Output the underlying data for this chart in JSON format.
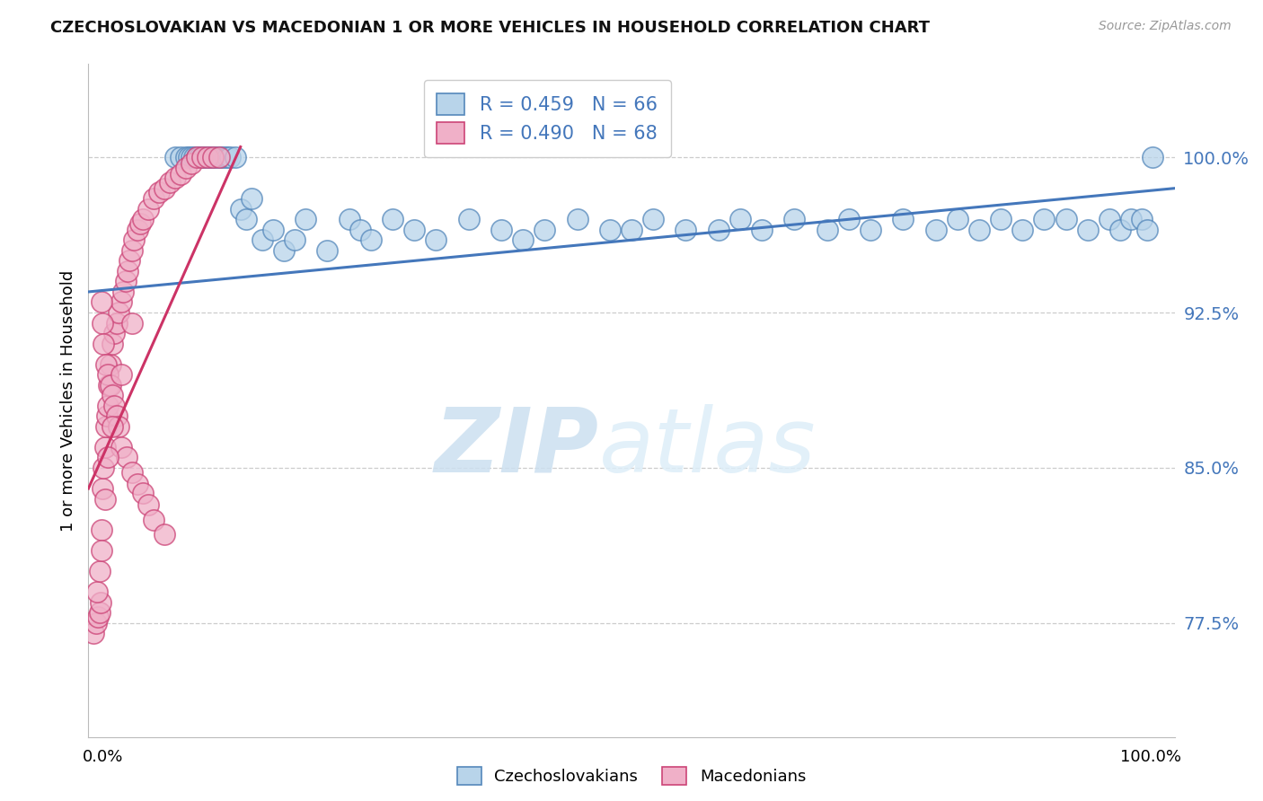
{
  "title": "CZECHOSLOVAKIAN VS MACEDONIAN 1 OR MORE VEHICLES IN HOUSEHOLD CORRELATION CHART",
  "source": "Source: ZipAtlas.com",
  "ylabel": "1 or more Vehicles in Household",
  "ytick_values": [
    0.775,
    0.85,
    0.925,
    1.0
  ],
  "ytick_labels": [
    "77.5%",
    "85.0%",
    "92.5%",
    "100.0%"
  ],
  "xmin": 0.0,
  "xmax": 1.0,
  "ymin": 0.72,
  "ymax": 1.045,
  "blue_R": 0.459,
  "blue_N": 66,
  "pink_R": 0.49,
  "pink_N": 68,
  "blue_color": "#b8d4ea",
  "blue_edge_color": "#5588bb",
  "pink_color": "#f0b0c8",
  "pink_edge_color": "#cc4477",
  "blue_line_color": "#4477bb",
  "pink_line_color": "#cc3366",
  "title_color": "#111111",
  "source_color": "#999999",
  "grid_color": "#cccccc",
  "axis_label_color": "#4477bb",
  "blue_x": [
    0.08,
    0.085,
    0.09,
    0.092,
    0.095,
    0.097,
    0.1,
    0.102,
    0.105,
    0.107,
    0.11,
    0.112,
    0.115,
    0.117,
    0.12,
    0.122,
    0.125,
    0.128,
    0.13,
    0.135,
    0.14,
    0.145,
    0.15,
    0.16,
    0.17,
    0.18,
    0.19,
    0.2,
    0.22,
    0.24,
    0.25,
    0.26,
    0.28,
    0.3,
    0.32,
    0.35,
    0.38,
    0.4,
    0.42,
    0.45,
    0.48,
    0.5,
    0.52,
    0.55,
    0.58,
    0.6,
    0.62,
    0.65,
    0.68,
    0.7,
    0.72,
    0.75,
    0.78,
    0.8,
    0.82,
    0.84,
    0.86,
    0.88,
    0.9,
    0.92,
    0.94,
    0.95,
    0.96,
    0.97,
    0.975,
    0.98
  ],
  "blue_y": [
    1.0,
    1.0,
    1.0,
    1.0,
    1.0,
    1.0,
    1.0,
    1.0,
    1.0,
    1.0,
    1.0,
    1.0,
    1.0,
    1.0,
    1.0,
    1.0,
    1.0,
    1.0,
    1.0,
    1.0,
    0.975,
    0.97,
    0.98,
    0.96,
    0.965,
    0.955,
    0.96,
    0.97,
    0.955,
    0.97,
    0.965,
    0.96,
    0.97,
    0.965,
    0.96,
    0.97,
    0.965,
    0.96,
    0.965,
    0.97,
    0.965,
    0.965,
    0.97,
    0.965,
    0.965,
    0.97,
    0.965,
    0.97,
    0.965,
    0.97,
    0.965,
    0.97,
    0.965,
    0.97,
    0.965,
    0.97,
    0.965,
    0.97,
    0.97,
    0.965,
    0.97,
    0.965,
    0.97,
    0.97,
    0.965,
    1.0
  ],
  "pink_x": [
    0.005,
    0.007,
    0.009,
    0.01,
    0.011,
    0.012,
    0.013,
    0.014,
    0.015,
    0.016,
    0.017,
    0.018,
    0.019,
    0.02,
    0.022,
    0.024,
    0.026,
    0.028,
    0.03,
    0.032,
    0.034,
    0.036,
    0.038,
    0.04,
    0.042,
    0.045,
    0.048,
    0.05,
    0.055,
    0.06,
    0.065,
    0.07,
    0.075,
    0.08,
    0.085,
    0.09,
    0.095,
    0.1,
    0.105,
    0.11,
    0.115,
    0.12,
    0.012,
    0.013,
    0.014,
    0.016,
    0.018,
    0.02,
    0.022,
    0.024,
    0.026,
    0.028,
    0.03,
    0.035,
    0.04,
    0.045,
    0.05,
    0.055,
    0.06,
    0.07,
    0.008,
    0.01,
    0.012,
    0.015,
    0.018,
    0.022,
    0.03,
    0.04
  ],
  "pink_y": [
    0.77,
    0.775,
    0.778,
    0.78,
    0.785,
    0.82,
    0.84,
    0.85,
    0.86,
    0.87,
    0.875,
    0.88,
    0.89,
    0.9,
    0.91,
    0.915,
    0.92,
    0.925,
    0.93,
    0.935,
    0.94,
    0.945,
    0.95,
    0.955,
    0.96,
    0.965,
    0.968,
    0.97,
    0.975,
    0.98,
    0.983,
    0.985,
    0.988,
    0.99,
    0.992,
    0.995,
    0.997,
    1.0,
    1.0,
    1.0,
    1.0,
    1.0,
    0.93,
    0.92,
    0.91,
    0.9,
    0.895,
    0.89,
    0.885,
    0.88,
    0.875,
    0.87,
    0.86,
    0.855,
    0.848,
    0.842,
    0.838,
    0.832,
    0.825,
    0.818,
    0.79,
    0.8,
    0.81,
    0.835,
    0.855,
    0.87,
    0.895,
    0.92
  ],
  "blue_trendline_x": [
    0.0,
    1.0
  ],
  "blue_trendline_y": [
    0.935,
    0.985
  ],
  "pink_trendline_x": [
    0.0,
    0.14
  ],
  "pink_trendline_y": [
    0.84,
    1.005
  ],
  "legend_text_blue": "R = 0.459   N = 66",
  "legend_text_pink": "R = 0.490   N = 68",
  "watermark_zip": "ZIP",
  "watermark_atlas": "atlas"
}
